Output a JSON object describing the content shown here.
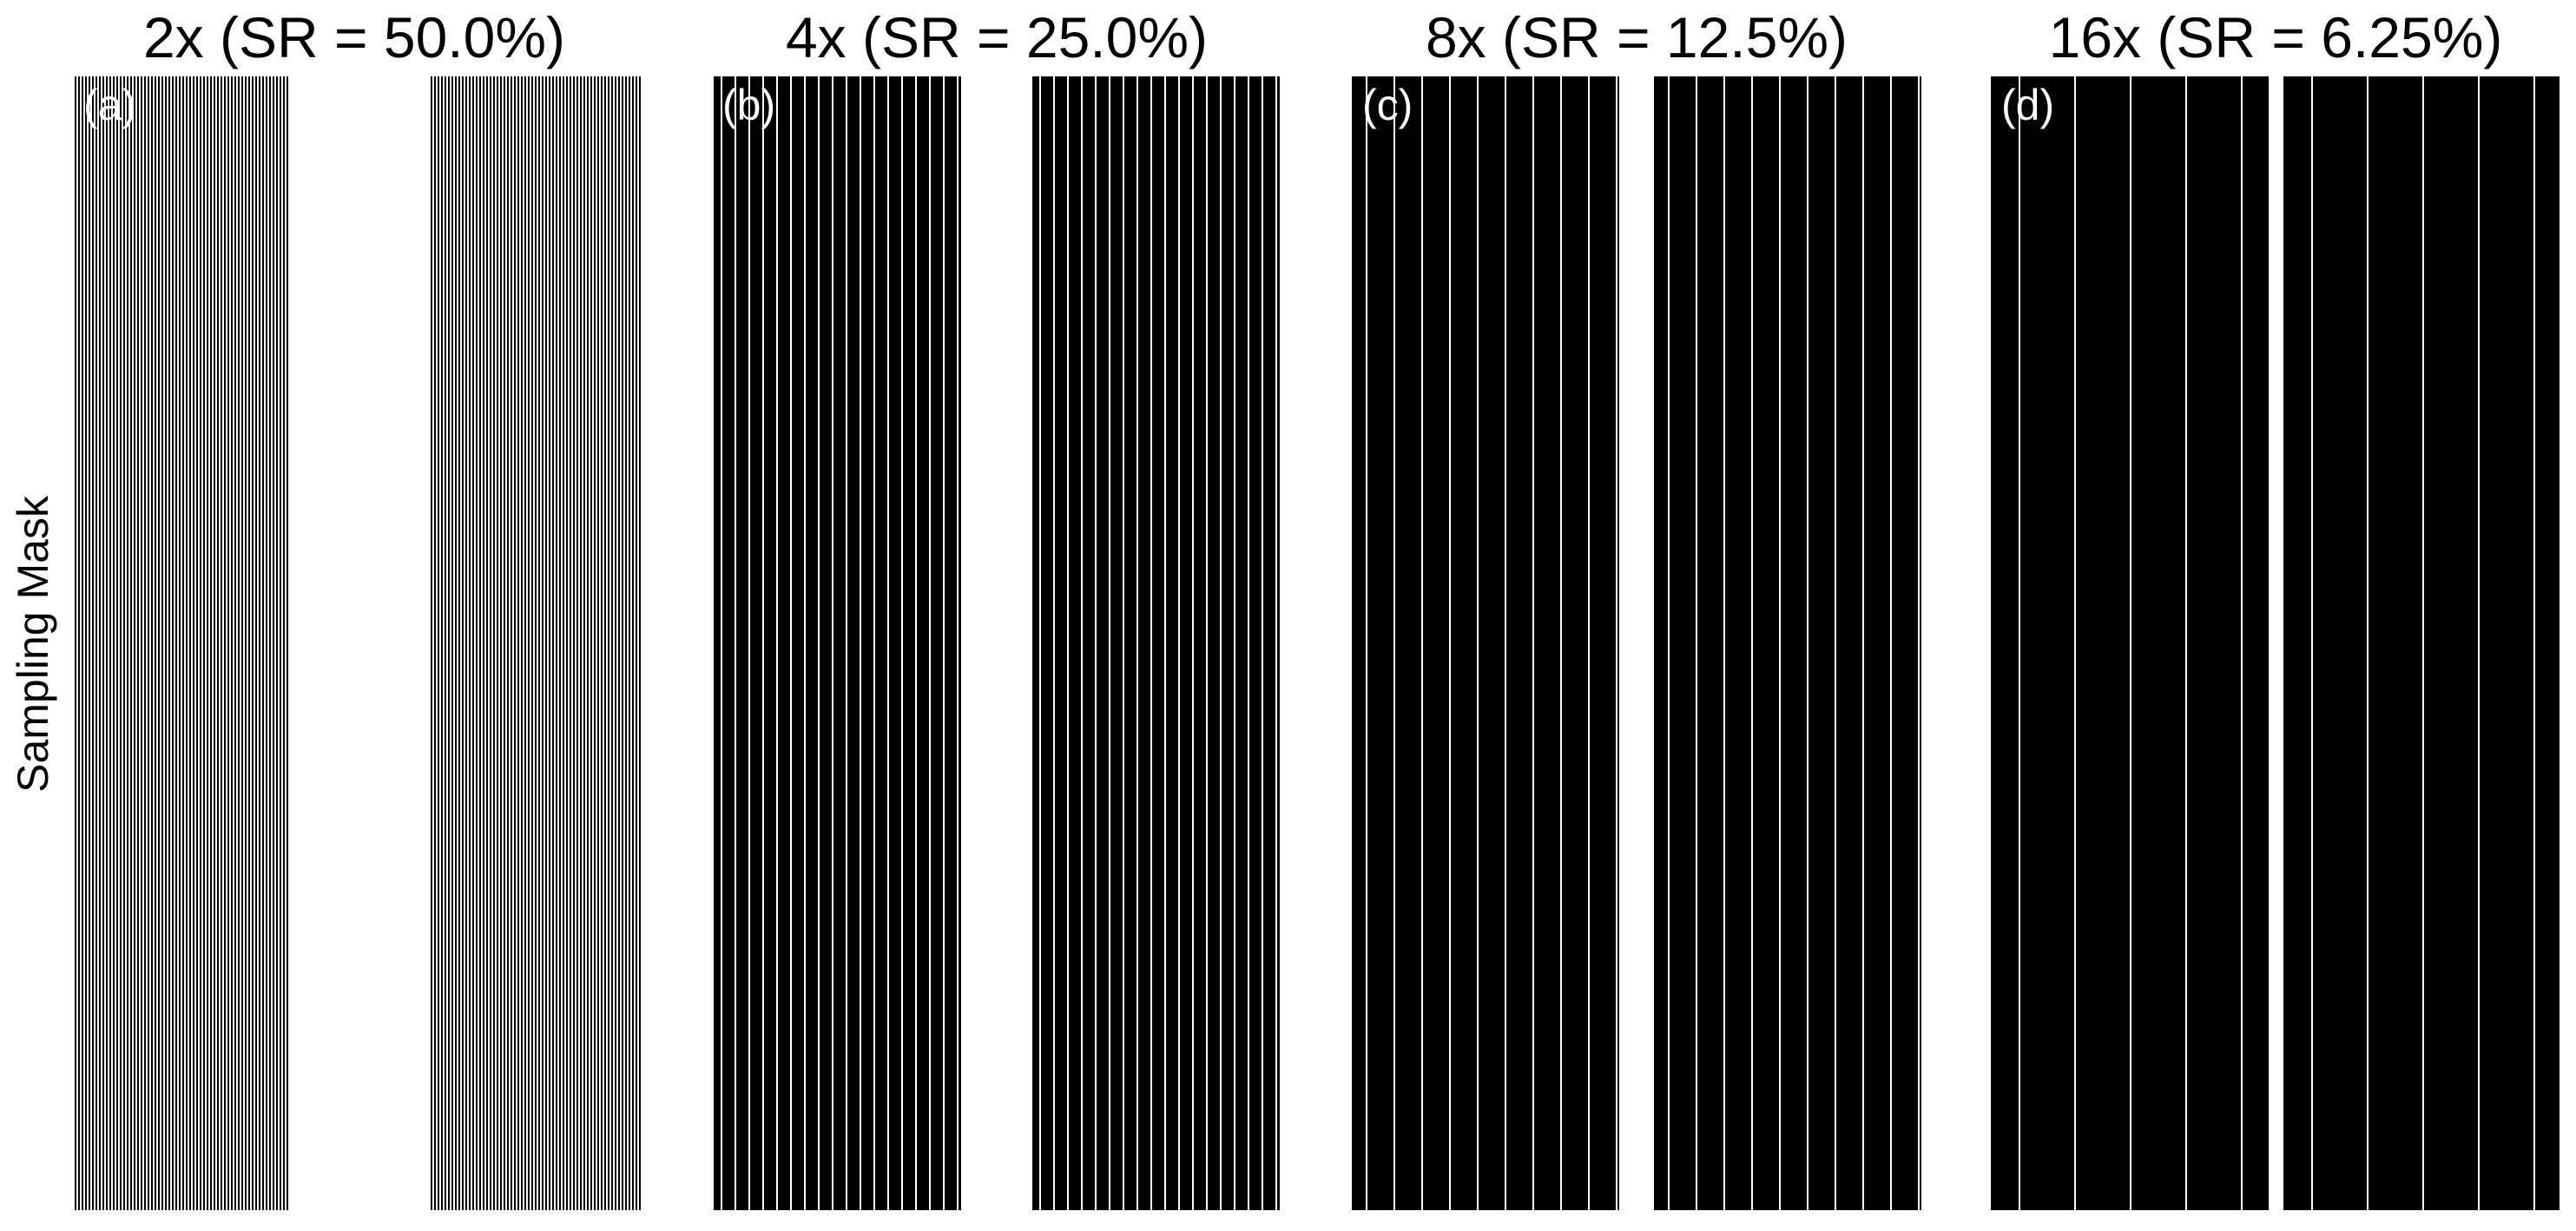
{
  "ylabel": "Sampling Mask",
  "colors": {
    "background": "#ffffff",
    "masked": "#000000",
    "sampled": "#ffffff",
    "text": "#000000",
    "tag_text": "#ffffff"
  },
  "panels": [
    {
      "id": "a",
      "tag": "(a)",
      "title": "2x (SR = 50.0%)",
      "acceleration": 2,
      "sampling_rate_percent": 50.0
    },
    {
      "id": "b",
      "tag": "(b)",
      "title": "4x (SR = 25.0%)",
      "acceleration": 4,
      "sampling_rate_percent": 25.0
    },
    {
      "id": "c",
      "tag": "(c)",
      "title": "8x (SR = 12.5%)",
      "acceleration": 8,
      "sampling_rate_percent": 12.5
    },
    {
      "id": "d",
      "tag": "(d)",
      "title": "16x (SR = 6.25%)",
      "acceleration": 16,
      "sampling_rate_percent": 6.25
    }
  ]
}
